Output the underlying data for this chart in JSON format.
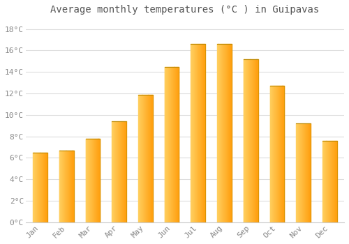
{
  "title": "Average monthly temperatures (°C ) in Guipavas",
  "months": [
    "Jan",
    "Feb",
    "Mar",
    "Apr",
    "May",
    "Jun",
    "Jul",
    "Aug",
    "Sep",
    "Oct",
    "Nov",
    "Dec"
  ],
  "temperatures": [
    6.5,
    6.7,
    7.8,
    9.4,
    11.9,
    14.5,
    16.6,
    16.6,
    15.2,
    12.7,
    9.2,
    7.6
  ],
  "bar_color_left": "#FFD060",
  "bar_color_right": "#FFA010",
  "bar_color_top": "#CC8800",
  "background_color": "#ffffff",
  "plot_bg_color": "#ffffff",
  "grid_color": "#dddddd",
  "ylim": [
    0,
    19
  ],
  "yticks": [
    0,
    2,
    4,
    6,
    8,
    10,
    12,
    14,
    16,
    18
  ],
  "ytick_labels": [
    "0°C",
    "2°C",
    "4°C",
    "6°C",
    "8°C",
    "10°C",
    "12°C",
    "14°C",
    "16°C",
    "18°C"
  ],
  "title_fontsize": 10,
  "tick_fontsize": 8,
  "bar_width": 0.55
}
